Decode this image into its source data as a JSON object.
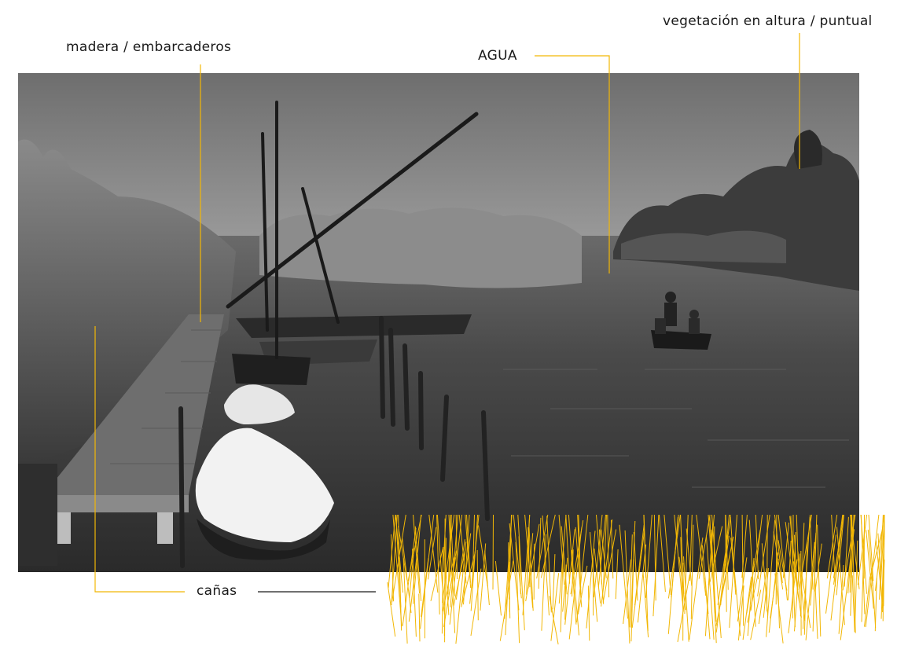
{
  "labels": {
    "wood": "madera / embarcaderos",
    "water": "AGUA",
    "vegetation": "vegetación en altura / puntual",
    "reeds": "cañas"
  },
  "colors": {
    "accent": "#f2b705",
    "leader_dark": "#1a1a1a",
    "photo_sky": "#7c7c7c",
    "photo_water": "#3a3a3a"
  },
  "photo": {
    "subject": "black-and-white photograph of a canal with moored sailboats, a wooden jetty, reeds and a rowing boat"
  }
}
